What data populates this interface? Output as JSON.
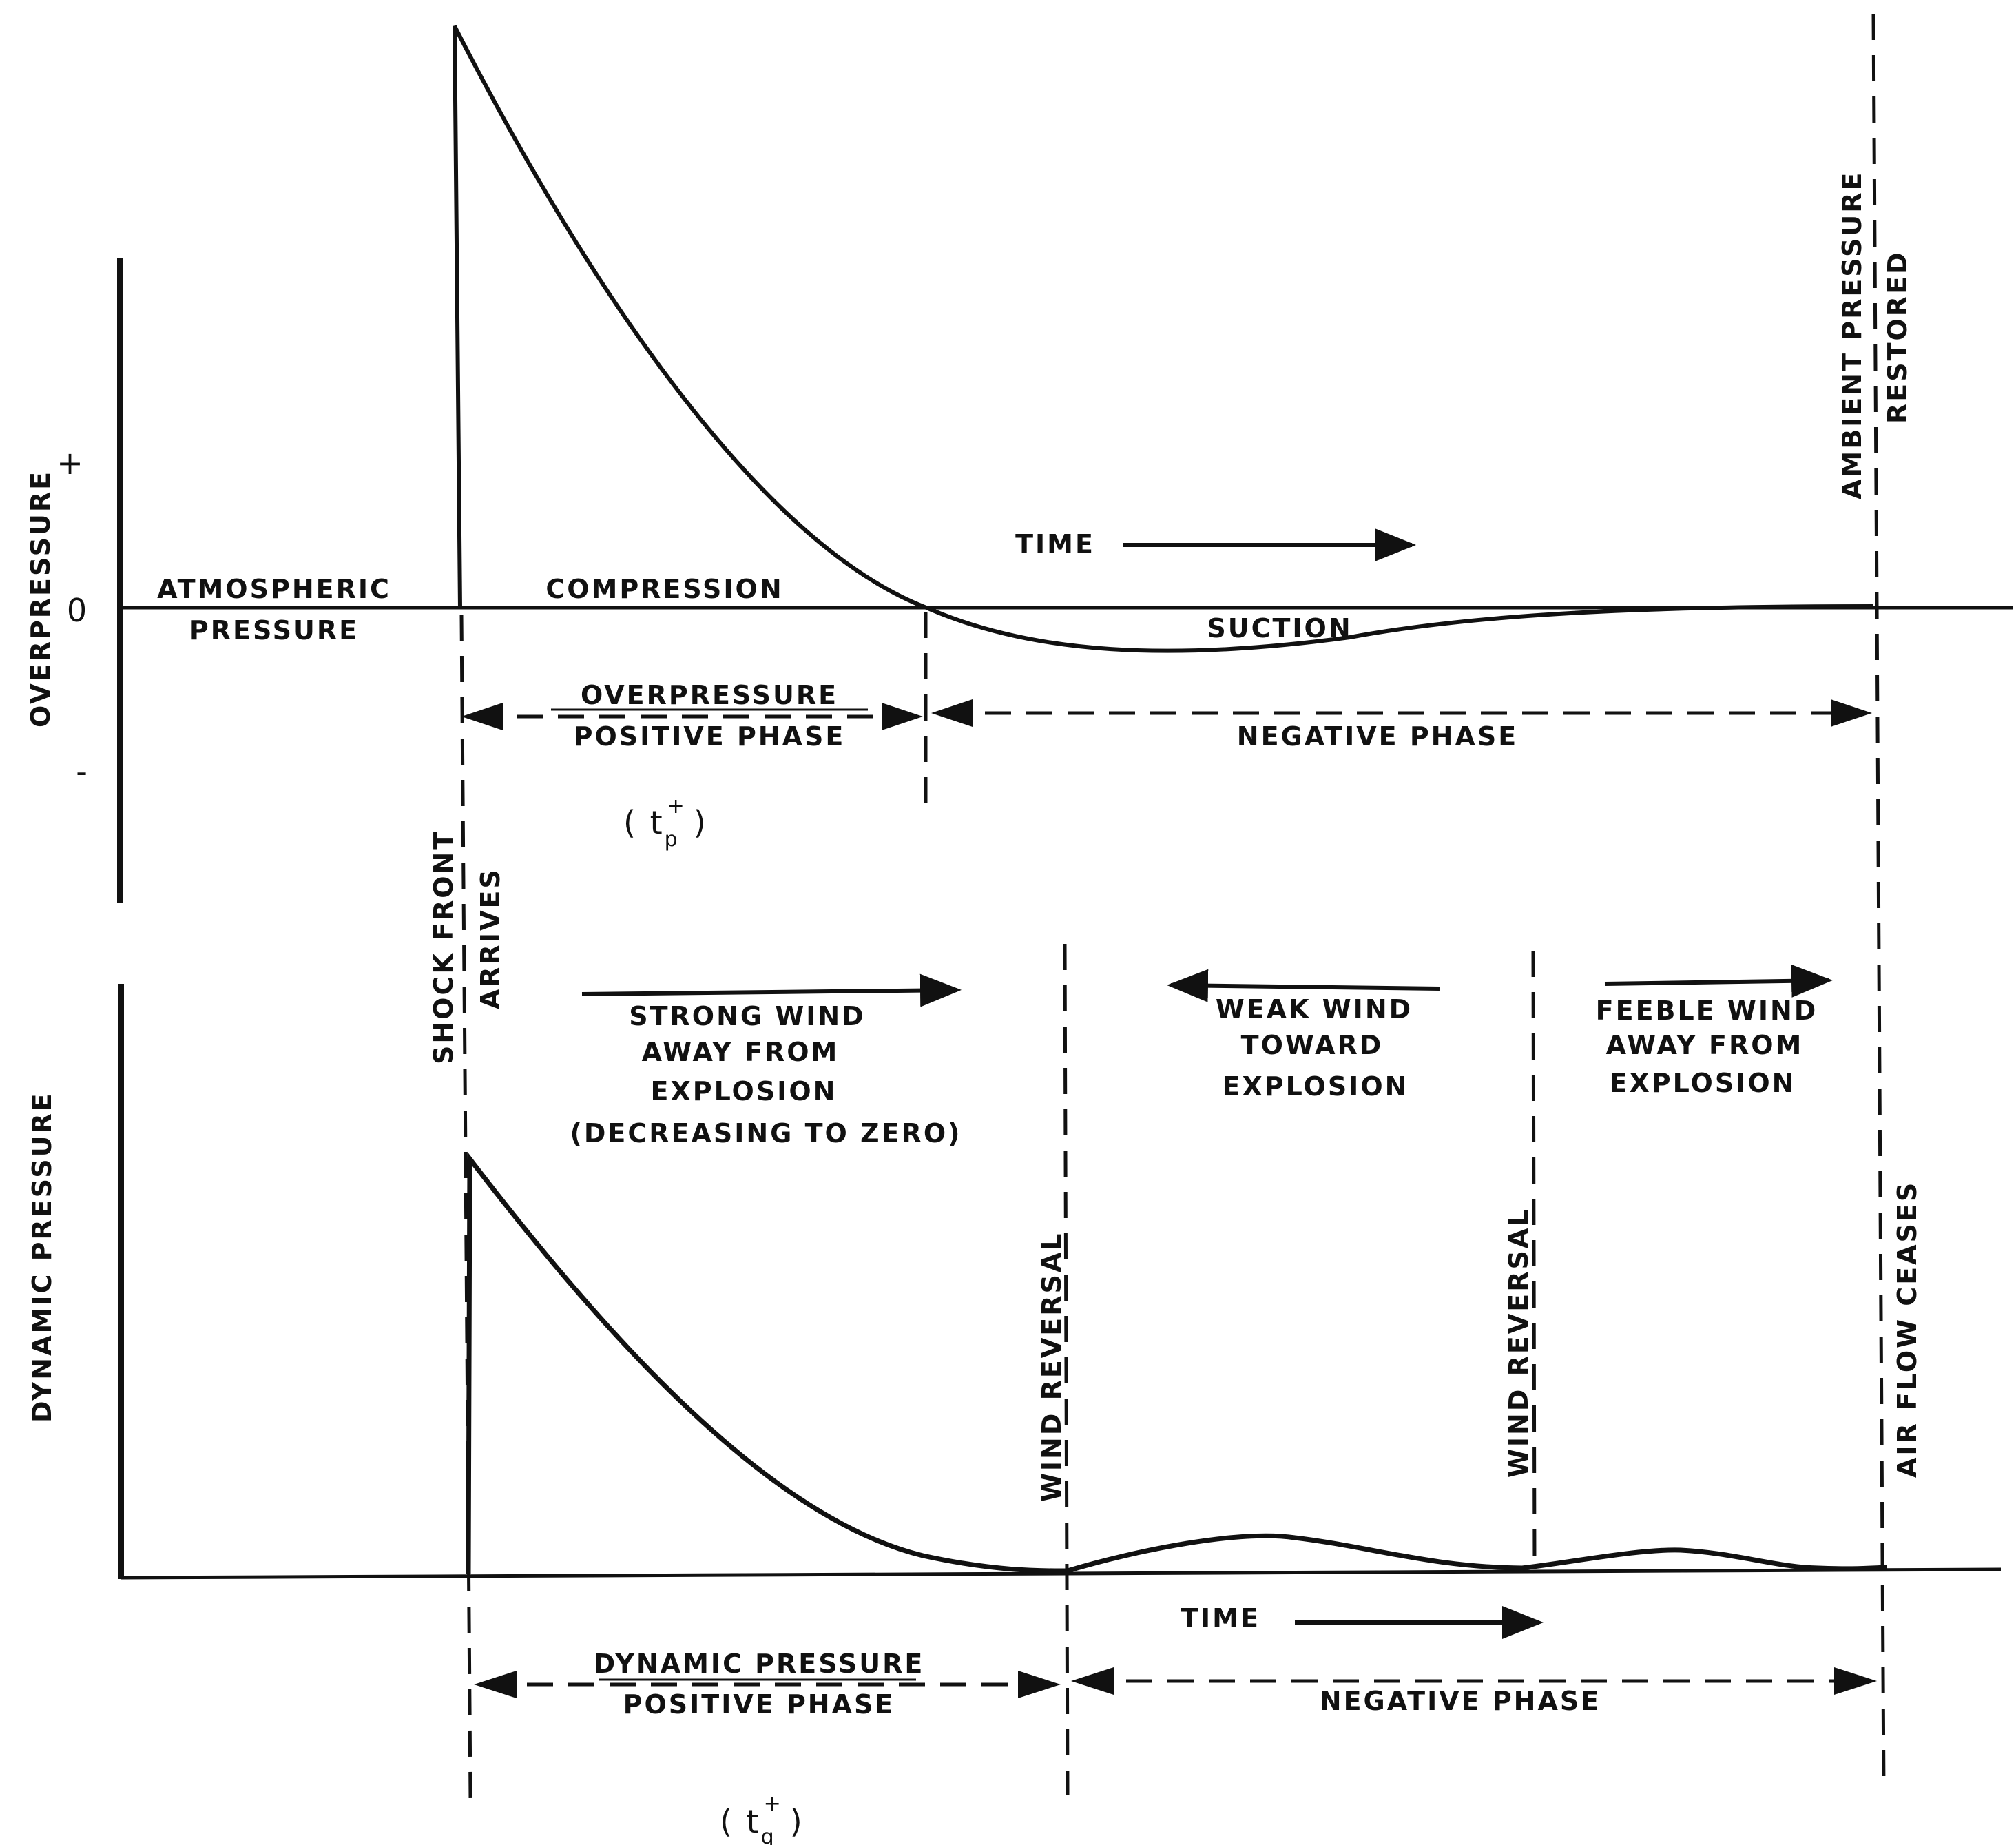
{
  "top_panel": {
    "axis_title": "OVERPRESSURE",
    "plus": "+",
    "zero": "0",
    "minus": "-",
    "atmospheric_line1": "ATMOSPHERIC",
    "atmospheric_line2": "PRESSURE",
    "compression": "COMPRESSION",
    "suction": "SUCTION",
    "time": "TIME",
    "positive_phase_line1": "OVERPRESSURE",
    "positive_phase_line2": "POSITIVE PHASE",
    "negative_phase": "NEGATIVE PHASE",
    "duration_symbol": "( t",
    "duration_sup": "+",
    "duration_sub": "p",
    "duration_close": ")",
    "ambient_line1": "AMBIENT PRESSURE",
    "ambient_line2": "RESTORED"
  },
  "markers": {
    "shock_line1": "SHOCK FRONT",
    "shock_line2": "ARRIVES"
  },
  "bottom_panel": {
    "axis_title": "DYNAMIC PRESSURE",
    "strong_wind": [
      "STRONG WIND",
      "AWAY FROM",
      "EXPLOSION",
      "(DECREASING TO ZERO)"
    ],
    "weak_wind": [
      "WEAK WIND",
      "TOWARD",
      "EXPLOSION"
    ],
    "feeble_wind": [
      "FEEBLE WIND",
      "AWAY FROM",
      "EXPLOSION"
    ],
    "wind_reversal_1": "WIND REVERSAL",
    "wind_reversal_2": "WIND REVERSAL",
    "air_flow_ceases": "AIR FLOW CEASES",
    "time": "TIME",
    "positive_phase_line1": "DYNAMIC PRESSURE",
    "positive_phase_line2": "POSITIVE PHASE",
    "negative_phase": "NEGATIVE PHASE",
    "duration_symbol": "( t",
    "duration_sup": "+",
    "duration_sub": "q",
    "duration_close": ")"
  }
}
